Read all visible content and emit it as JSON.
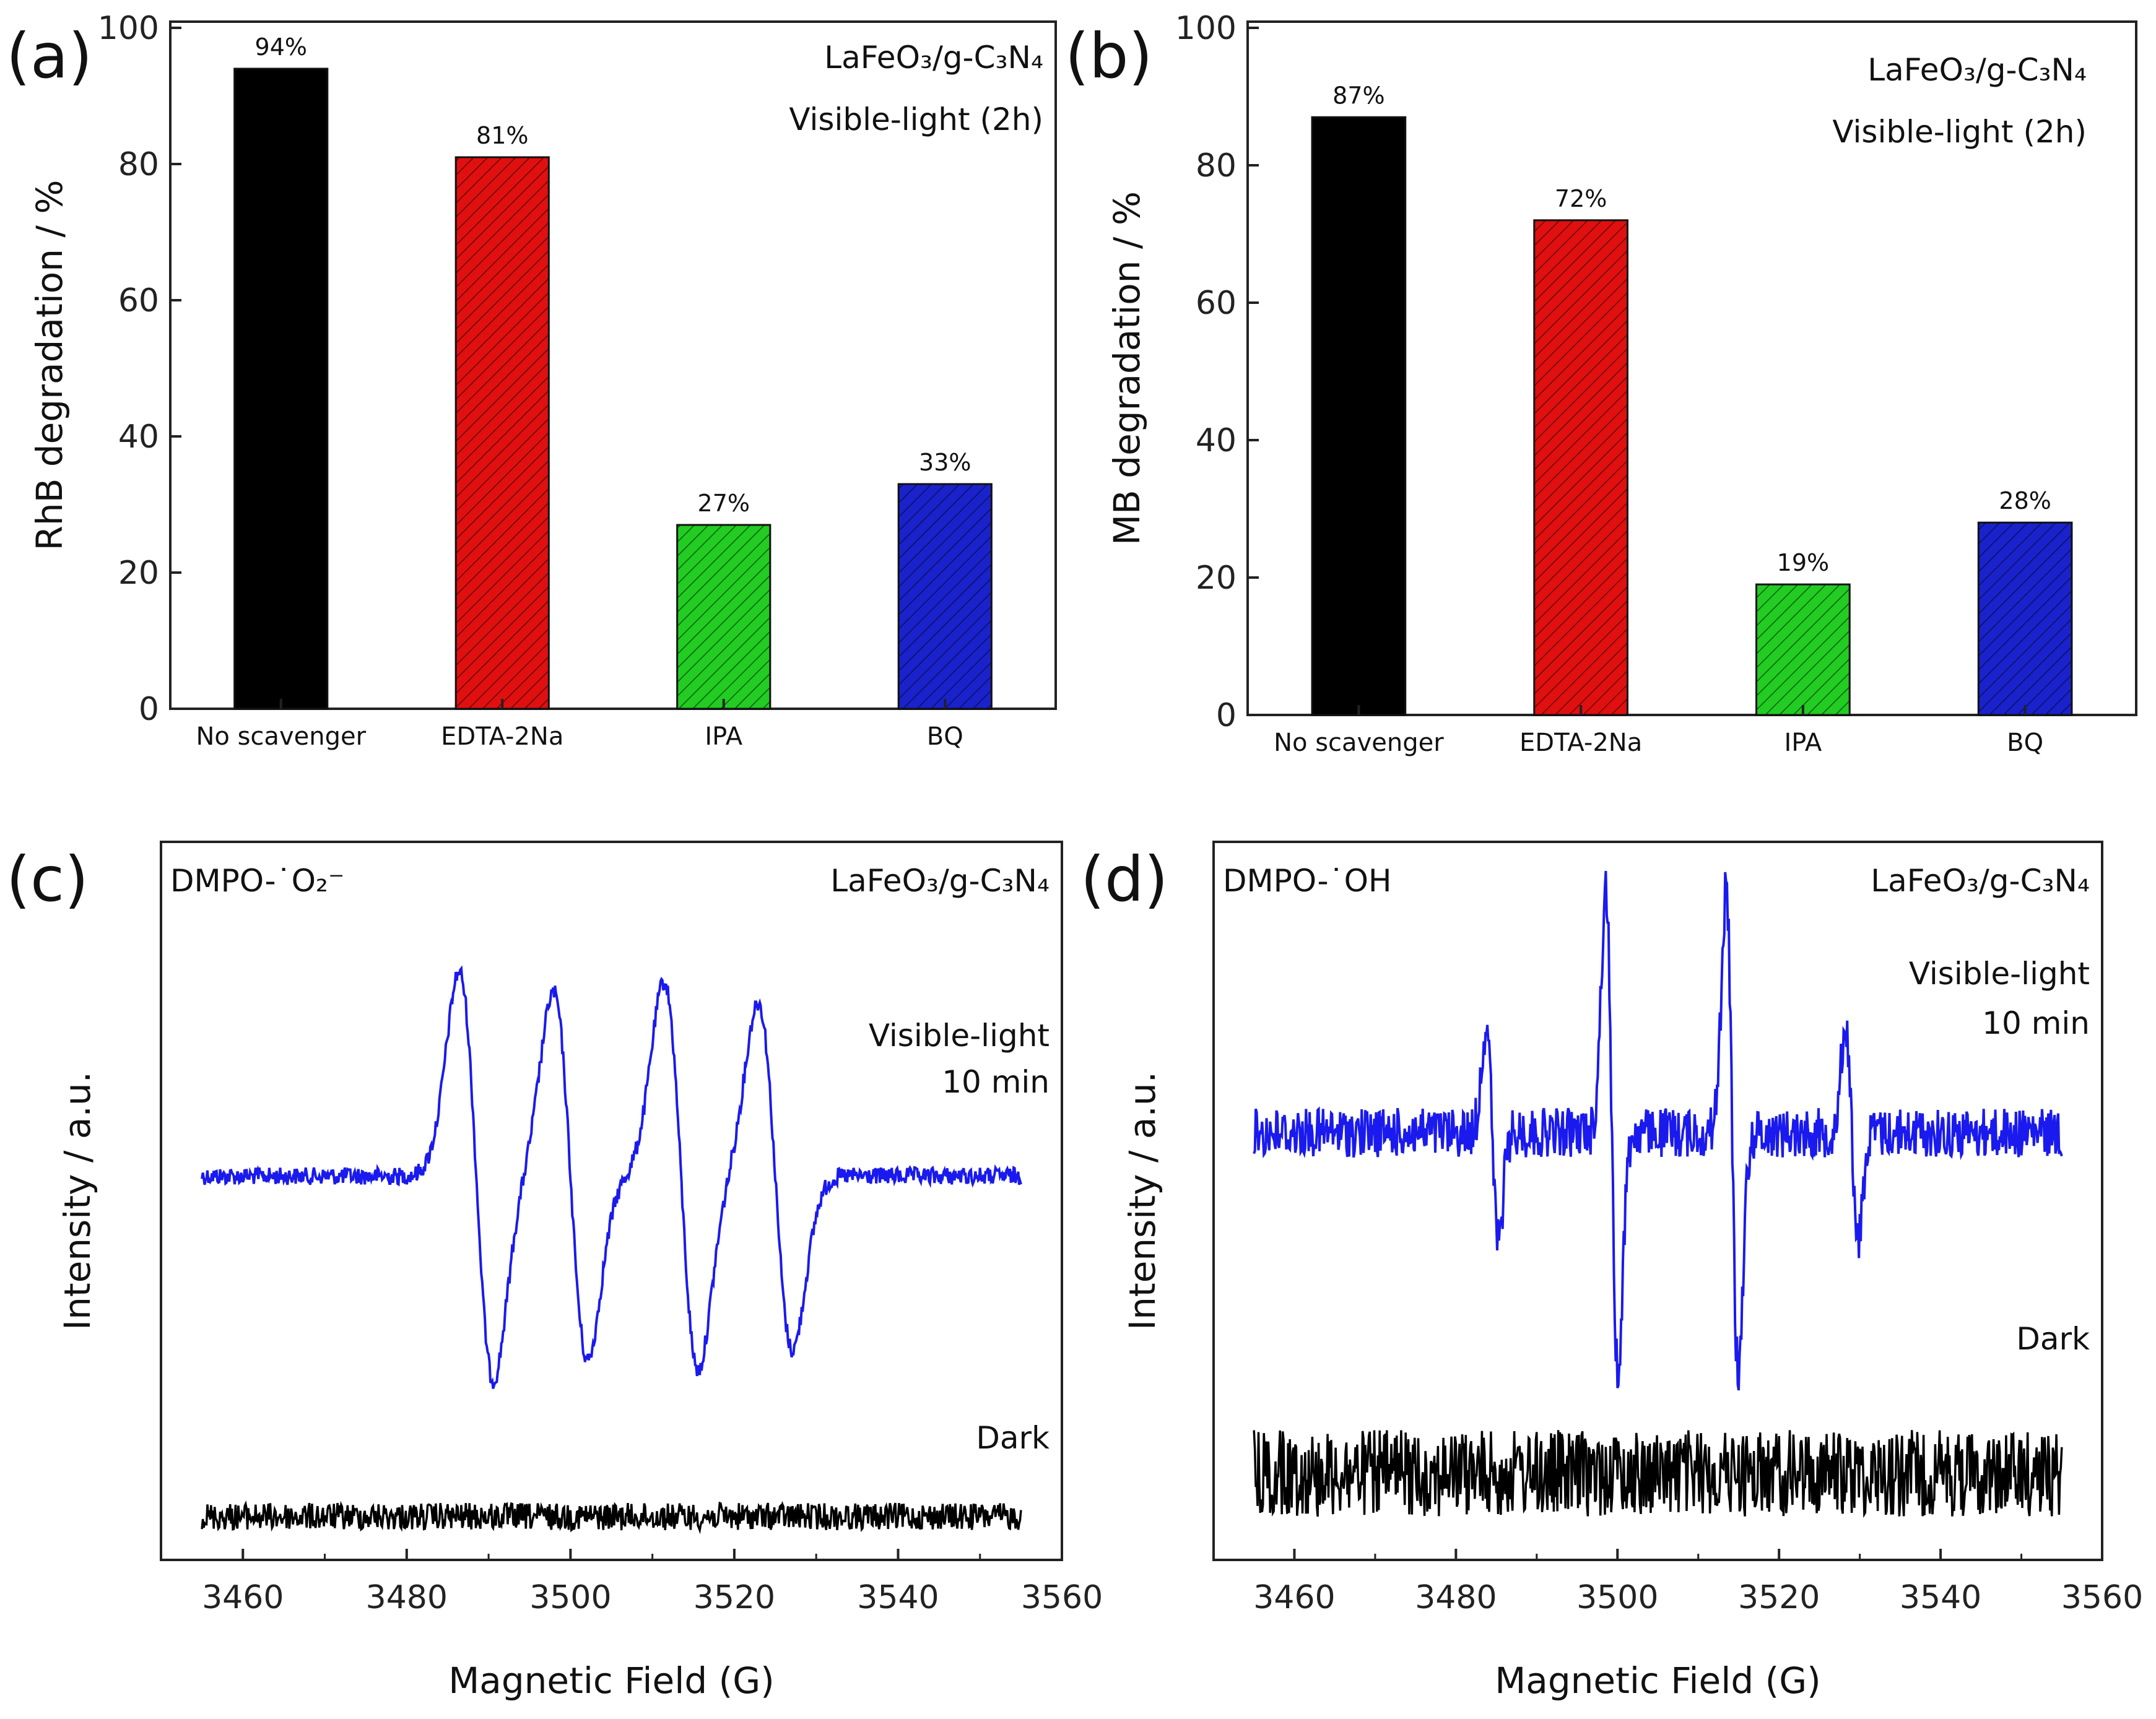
{
  "chart_data": [
    {
      "id": "a",
      "type": "bar",
      "panel_label": "(a)",
      "categories": [
        "No scavenger",
        "EDTA-2Na",
        "IPA",
        "BQ"
      ],
      "values": [
        94,
        81,
        27,
        33
      ],
      "data_labels": [
        "94%",
        "81%",
        "27%",
        "33%"
      ],
      "bar_colors": [
        "#000000",
        "#e01010",
        "#22cc22",
        "#1a22cc"
      ],
      "ylabel": "RhB degradation / %",
      "xlabel": "",
      "ylim": [
        0,
        100
      ],
      "yticks": [
        0,
        20,
        40,
        60,
        80,
        100
      ],
      "annotations": [
        "LaFeO₃/g-C₃N₄",
        "Visible-light (2h)"
      ]
    },
    {
      "id": "b",
      "type": "bar",
      "panel_label": "(b)",
      "categories": [
        "No scavenger",
        "EDTA-2Na",
        "IPA",
        "BQ"
      ],
      "values": [
        87,
        72,
        19,
        28
      ],
      "data_labels": [
        "87%",
        "72%",
        "19%",
        "28%"
      ],
      "bar_colors": [
        "#000000",
        "#e01010",
        "#22cc22",
        "#1a22cc"
      ],
      "ylabel": "MB degradation / %",
      "xlabel": "",
      "ylim": [
        0,
        100
      ],
      "yticks": [
        0,
        20,
        40,
        60,
        80,
        100
      ],
      "annotations": [
        "LaFeO₃/g-C₃N₄",
        "Visible-light (2h)"
      ]
    },
    {
      "id": "c",
      "type": "line",
      "panel_label": "(c)",
      "species": "DMPO-˙O₂⁻",
      "xlabel": "Magnetic Field (G)",
      "ylabel": "Intensity / a.u.",
      "xlim": [
        3450,
        3560
      ],
      "xticks": [
        3460,
        3480,
        3500,
        3520,
        3540,
        3560
      ],
      "x_range": [
        3455,
        3555
      ],
      "annotations": [
        "LaFeO₃/g-C₃N₄",
        "Visible-light",
        "10 min",
        "Dark"
      ],
      "series": [
        {
          "name": "Visible-light 10 min",
          "color": "#1a1aee",
          "peaks": [
            {
              "center": 3488.5,
              "amplitude": 1.0
            },
            {
              "center": 3500.0,
              "amplitude": 0.9
            },
            {
              "center": 3513.5,
              "amplitude": 0.95
            },
            {
              "center": 3525.0,
              "amplitude": 0.85
            }
          ]
        },
        {
          "name": "Dark",
          "color": "#000000",
          "peaks": []
        }
      ]
    },
    {
      "id": "d",
      "type": "line",
      "panel_label": "(d)",
      "species": "DMPO-˙OH",
      "xlabel": "Magnetic Field (G)",
      "ylabel": "Intensity / a.u.",
      "xlim": [
        3450,
        3560
      ],
      "xticks": [
        3460,
        3480,
        3500,
        3520,
        3540,
        3560
      ],
      "x_range": [
        3455,
        3555
      ],
      "annotations": [
        "LaFeO₃/g-C₃N₄",
        "Visible-light",
        "10 min",
        "Dark"
      ],
      "series": [
        {
          "name": "Visible-light 10 min",
          "color": "#1a1aee",
          "peaks": [
            {
              "center": 3484.5,
              "amplitude": 0.45
            },
            {
              "center": 3499.3,
              "amplitude": 1.0
            },
            {
              "center": 3514.2,
              "amplitude": 1.0
            },
            {
              "center": 3529.0,
              "amplitude": 0.45
            }
          ]
        },
        {
          "name": "Dark",
          "color": "#000000",
          "peaks": []
        }
      ]
    }
  ]
}
